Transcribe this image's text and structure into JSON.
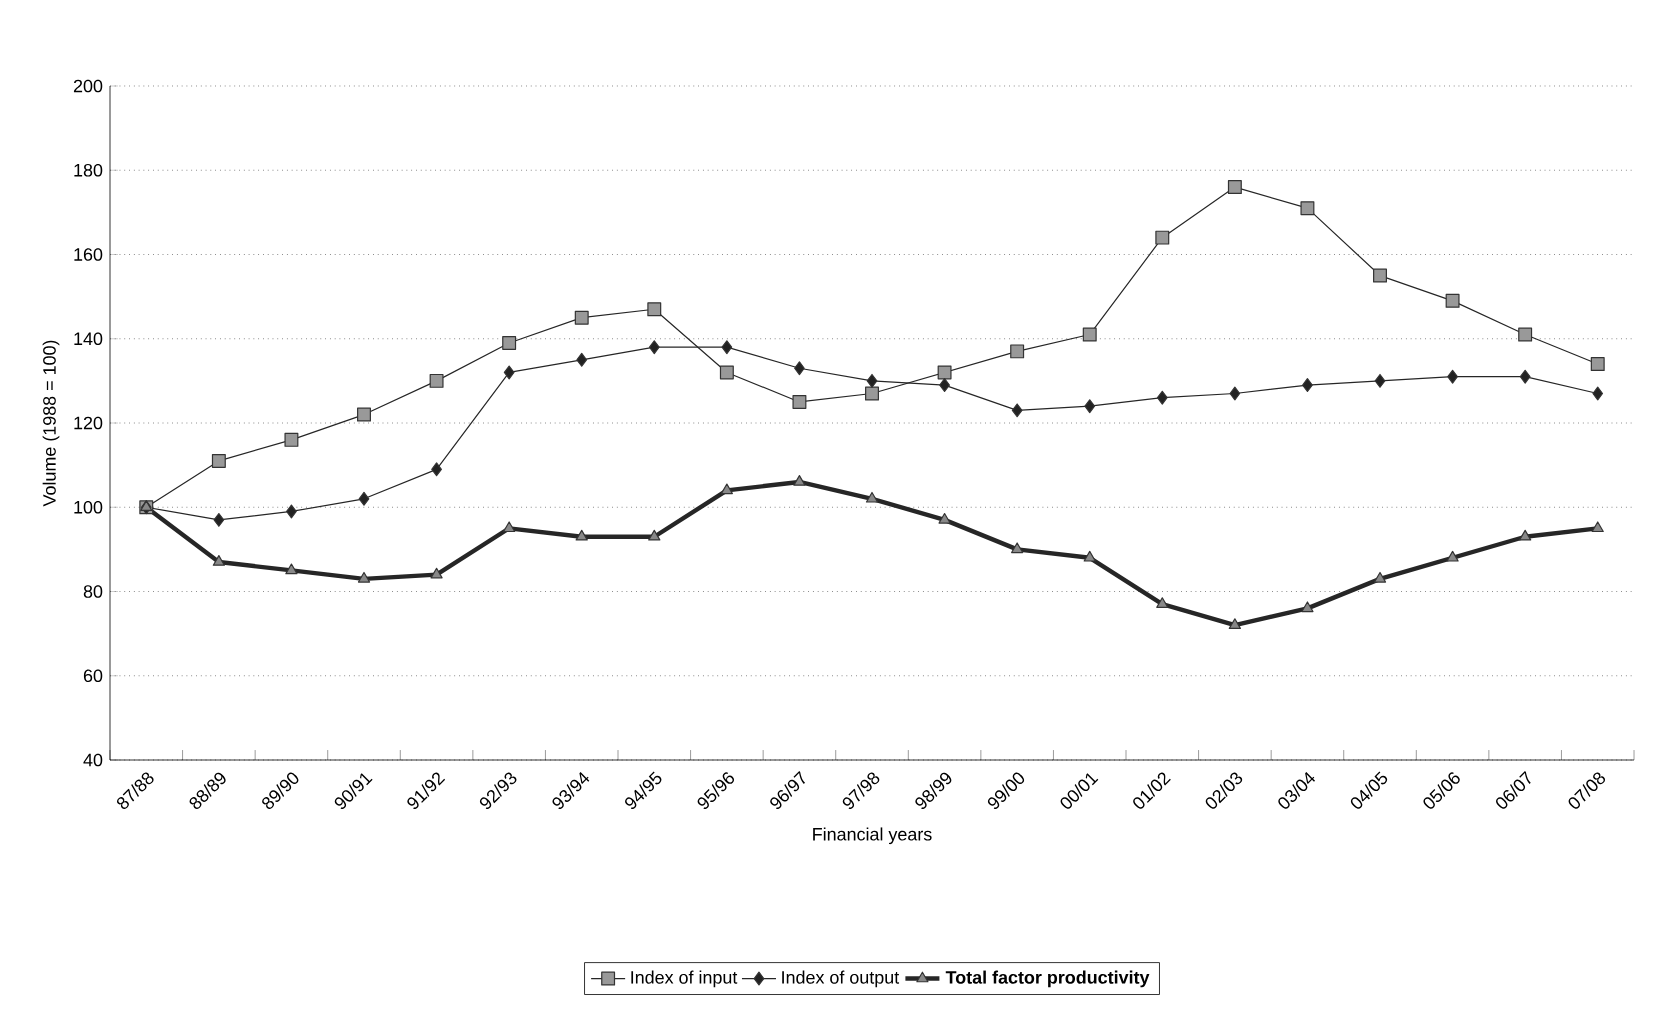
{
  "chart_data": {
    "type": "line",
    "xlabel": "Financial years",
    "ylabel": "Volume (1988 = 100)",
    "categories": [
      "87/88",
      "88/89",
      "89/90",
      "90/91",
      "91/92",
      "92/93",
      "93/94",
      "94/95",
      "95/96",
      "96/97",
      "97/98",
      "98/99",
      "99/00",
      "00/01",
      "01/02",
      "02/03",
      "03/04",
      "04/05",
      "05/06",
      "06/07",
      "07/08"
    ],
    "series": [
      {
        "name": "Index of input",
        "color": "#999999",
        "marker": "square",
        "values": [
          100,
          111,
          116,
          122,
          130,
          139,
          145,
          147,
          132,
          125,
          127,
          132,
          137,
          141,
          164,
          176,
          171,
          155,
          149,
          141,
          134
        ]
      },
      {
        "name": "Index of output",
        "color": "#222222",
        "marker": "diamond",
        "values": [
          100,
          97,
          99,
          102,
          109,
          132,
          135,
          138,
          138,
          133,
          130,
          129,
          123,
          124,
          126,
          127,
          129,
          130,
          131,
          131,
          127
        ]
      },
      {
        "name": "**Total factor productivity**",
        "color": "#888888",
        "marker": "triangle",
        "values": [
          100,
          87,
          85,
          83,
          84,
          95,
          93,
          93,
          104,
          106,
          102,
          97,
          90,
          88,
          77,
          72,
          76,
          83,
          88,
          93,
          95
        ]
      }
    ],
    "ylim": [
      40,
      200
    ],
    "yticks": [
      40,
      60,
      80,
      100,
      120,
      140,
      160,
      180,
      200
    ],
    "grid": "y",
    "legend": "bottom",
    "line_style": "solid"
  }
}
